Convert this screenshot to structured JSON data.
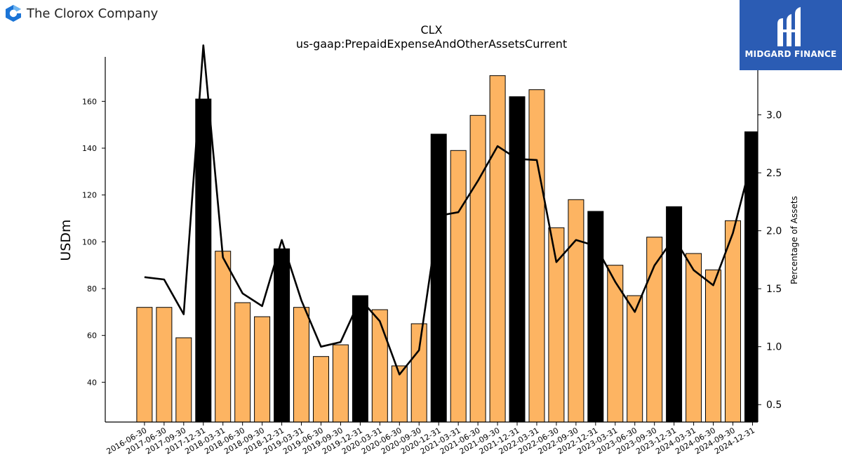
{
  "company": {
    "name": "The Clorox Company",
    "logo_icon": "clorox-logo-icon"
  },
  "brand": {
    "name": "MIDGARD FINANCE",
    "logo_icon": "midgard-logo-icon",
    "color": "#2b5cb4"
  },
  "chart_data": {
    "type": "bar",
    "title": "CLX",
    "subtitle": "us-gaap:PrepaidExpenseAndOtherAssetsCurrent",
    "ylabel": "USDm",
    "y2label": "Percentage of Assets",
    "ylim": [
      23,
      179
    ],
    "y2lim": [
      0.35,
      3.5
    ],
    "yticks": [
      40,
      60,
      80,
      100,
      120,
      140,
      160
    ],
    "y2ticks": [
      0.5,
      1.0,
      1.5,
      2.0,
      2.5,
      3.0
    ],
    "y2ticklabels": [
      "0.5",
      "1.0",
      "1.5",
      "2.0",
      "2.5",
      "3.0"
    ],
    "grid": false,
    "colors": {
      "quarter": "#fdb462",
      "annual": "#000000",
      "line": "#000000"
    },
    "categories": [
      "2016-06-30",
      "2017-06-30",
      "2017-09-30",
      "2017-12-31",
      "2018-03-31",
      "2018-06-30",
      "2018-09-30",
      "2018-12-31",
      "2019-03-31",
      "2019-06-30",
      "2019-09-30",
      "2019-12-31",
      "2020-03-31",
      "2020-06-30",
      "2020-09-30",
      "2020-12-31",
      "2021-03-31",
      "2021-06-30",
      "2021-09-30",
      "2021-12-31",
      "2022-03-31",
      "2022-06-30",
      "2022-09-30",
      "2022-12-31",
      "2023-03-31",
      "2023-06-30",
      "2023-09-30",
      "2023-12-31",
      "2024-03-31",
      "2024-06-30",
      "2024-09-30",
      "2024-12-31"
    ],
    "series": [
      {
        "type": "bar",
        "values": [
          72,
          72,
          59,
          161,
          96,
          74,
          68,
          97,
          72,
          51,
          56,
          77,
          71,
          47,
          65,
          146,
          139,
          154,
          171,
          162,
          165,
          106,
          118,
          113,
          90,
          77,
          102,
          115,
          95,
          88,
          109,
          147
        ],
        "highlight": [
          false,
          false,
          false,
          true,
          false,
          false,
          false,
          true,
          false,
          false,
          false,
          true,
          false,
          false,
          false,
          true,
          false,
          false,
          false,
          true,
          false,
          false,
          false,
          true,
          false,
          false,
          false,
          true,
          false,
          false,
          false,
          true
        ]
      },
      {
        "type": "line",
        "axis": "right",
        "values": [
          1.6,
          1.58,
          1.28,
          3.6,
          1.77,
          1.46,
          1.35,
          1.92,
          1.4,
          1.0,
          1.04,
          1.41,
          1.22,
          0.76,
          0.97,
          2.13,
          2.16,
          2.43,
          2.73,
          2.62,
          2.61,
          1.73,
          1.92,
          1.87,
          1.56,
          1.3,
          1.7,
          1.94,
          1.66,
          1.53,
          1.98,
          2.64
        ]
      }
    ]
  }
}
